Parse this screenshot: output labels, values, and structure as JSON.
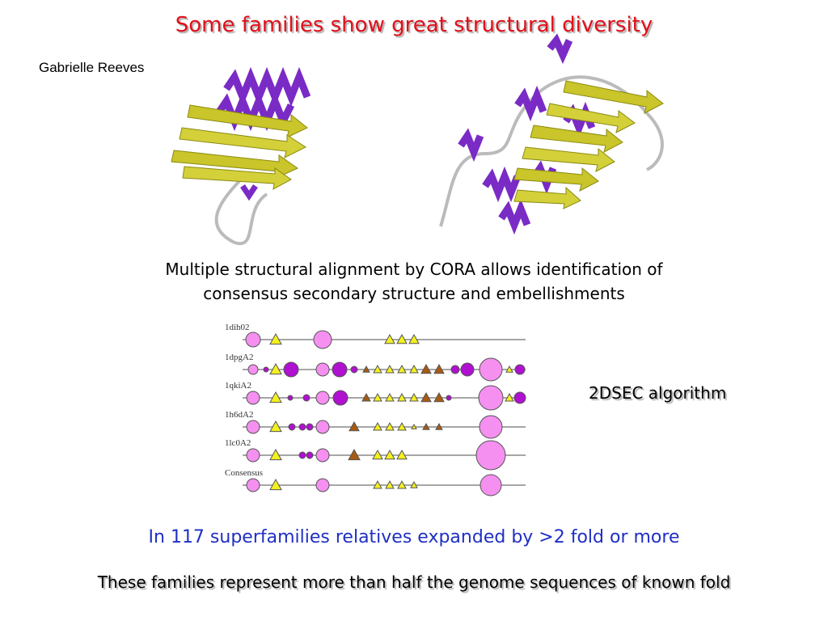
{
  "title": "Some families show great structural diversity",
  "author": "Gabrielle Reeves",
  "caption": {
    "lines": [
      "Multiple structural alignment by CORA allows identification of",
      "consensus secondary structure and embellishments"
    ]
  },
  "diagram": {
    "rows": [
      "1dih02",
      "1dpgA2",
      "1qkiA2",
      "1h6dA2",
      "1lc0A2",
      "Consensus"
    ]
  },
  "algorithm_label": "2DSEC algorithm",
  "superfamilies_note": "In 117 superfamilies relatives expanded by >2 fold or more",
  "families_note": "These families represent more than half the genome sequences of known fold"
}
